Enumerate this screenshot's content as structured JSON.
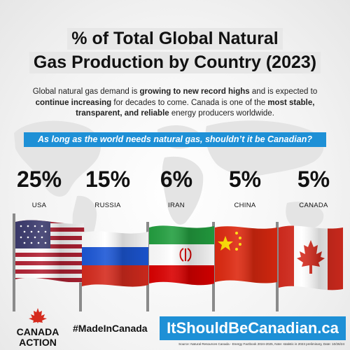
{
  "header": {
    "title_line1": "% of Total Global Natural",
    "title_line2": "Gas Production by Country (2023)"
  },
  "intro": {
    "p1": "Global natural gas demand is ",
    "b1": "growing to new record highs",
    "p2": " and is expected to ",
    "b2": "continue increasing",
    "p3": " for decades to come. Canada is one of the ",
    "b3": "most stable, transparent, and reliable",
    "p4": " energy producers worldwide."
  },
  "banner": "As long as the world needs natural gas, shouldn’t it be Canadian?",
  "chart_data": {
    "type": "table",
    "title": "% of Total Global Natural Gas Production by Country (2023)",
    "categories": [
      "USA",
      "RUSSIA",
      "IRAN",
      "CHINA",
      "CANADA"
    ],
    "values": [
      25,
      15,
      6,
      5,
      5
    ],
    "value_labels": [
      "25%",
      "15%",
      "6%",
      "5%",
      "5%"
    ],
    "unit": "%"
  },
  "footer": {
    "logo_line1": "CANADA",
    "logo_line2": "ACTION",
    "hashtag": "#MadeInCanada",
    "site": "ItShouldBeCanadian.ca",
    "source": "Source: Natural Resources Canada - Energy Factbook 2024-2025, Note: statistic is 2023 preliminary, Date: 10/26/24"
  },
  "colors": {
    "accent": "#1e90d6",
    "title_bg": "#e7e7e7",
    "canada_red": "#d52b1e"
  }
}
